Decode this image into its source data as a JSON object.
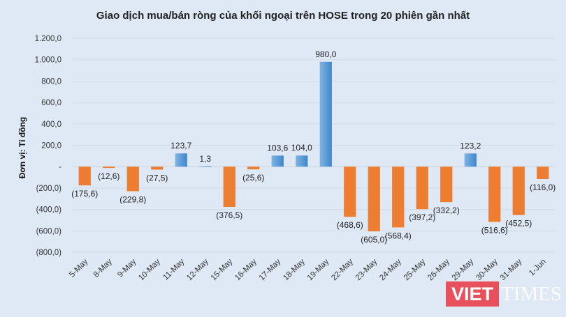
{
  "chart_data": {
    "type": "bar",
    "title": "Giao dịch mua/bán ròng của khối ngoại trên HOSE trong 20 phiên gần nhất",
    "ylabel": "Đơn vị: Tỉ đồng",
    "xlabel": "",
    "ylim": [
      -800,
      1200
    ],
    "yticks": [
      1200,
      1000,
      800,
      600,
      400,
      200,
      0,
      -200,
      -400,
      -600,
      -800
    ],
    "ytick_labels": [
      "1.200,0",
      "1.000,0",
      "800,0",
      "600,0",
      "400,0",
      "200,0",
      "-",
      "(200,0)",
      "(400,0)",
      "(600,0)",
      "(800,0)"
    ],
    "grid": true,
    "categories": [
      "5-May",
      "8-May",
      "9-May",
      "10-May",
      "11-May",
      "12-May",
      "15-May",
      "16-May",
      "17-May",
      "18-May",
      "19-May",
      "22-May",
      "23-May",
      "24-May",
      "25-May",
      "26-May",
      "29-May",
      "30-May",
      "31-May",
      "1-Jun"
    ],
    "values": [
      -175.6,
      -12.6,
      -229.8,
      -27.5,
      123.7,
      1.3,
      -376.5,
      -25.6,
      103.6,
      104.0,
      980.0,
      -468.6,
      -605.0,
      -568.4,
      -397.2,
      -332.2,
      123.2,
      -516.6,
      -452.5,
      -116.0
    ],
    "data_labels": [
      "(175,6)",
      "(12,6)",
      "(229,8)",
      "(27,5)",
      "123,7",
      "1,3",
      "(376,5)",
      "(25,6)",
      "103,6",
      "104,0",
      "980,0",
      "(468,6)",
      "(605,0)",
      "(568,4)",
      "(397,2)",
      "(332,2)",
      "123,2",
      "(516,6)",
      "(452,5)",
      "(116,0)"
    ],
    "colors": {
      "positive": "#5b9bd5",
      "negative": "#ed7d31"
    }
  },
  "watermark": {
    "logo": "VIETTIMES"
  }
}
